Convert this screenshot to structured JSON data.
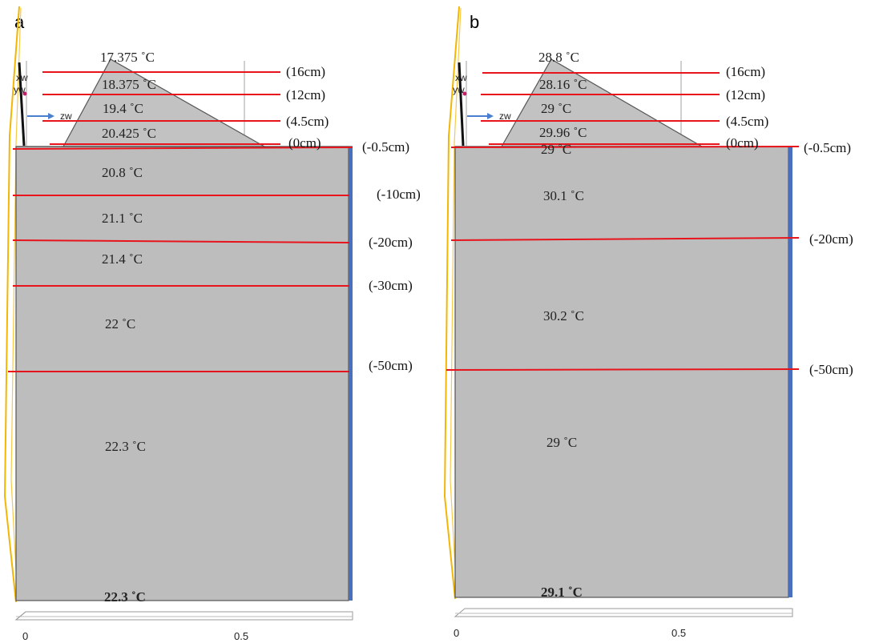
{
  "panels": [
    {
      "id": "a",
      "label": "a",
      "axis_bottom": {
        "ticks": [
          "0",
          "0.5"
        ]
      },
      "axis_triad": {
        "x": "xw",
        "y": "yw",
        "z": "zw"
      },
      "colors": {
        "domain": "#bdbdbd",
        "section_line": "#e8141c",
        "boundary": "#4a6fbd",
        "profile": "#f2b705"
      },
      "height_labels": [
        "(16cm)",
        "(12cm)",
        "(4.5cm)",
        "(0cm)",
        "(-0.5cm)",
        "(-10cm)",
        "(-20cm)",
        "(-30cm)",
        "(-50cm)"
      ],
      "temperatures": [
        "17.375 ˚C",
        "18.375 ˚C",
        "19.4 ˚C",
        "20.425 ˚C",
        "20.8 ˚C",
        "21.1 ˚C",
        "21.4 ˚C",
        "22 ˚C",
        "22.3 ˚C",
        "22.3 ˚C"
      ]
    },
    {
      "id": "b",
      "label": "b",
      "axis_bottom": {
        "ticks": [
          "0",
          "0.5"
        ]
      },
      "axis_triad": {
        "x": "xw",
        "y": "yw",
        "z": "zw"
      },
      "colors": {
        "domain": "#bdbdbd",
        "section_line": "#e8141c",
        "boundary": "#4a6fbd",
        "profile": "#f2b705"
      },
      "height_labels": [
        "(16cm)",
        "(12cm)",
        "(4.5cm)",
        "(0cm)",
        "(-0.5cm)",
        "(-20cm)",
        "(-50cm)"
      ],
      "temperatures": [
        "28.8 ˚C",
        "28.16 ˚C",
        "29 ˚C",
        "29.96 ˚C",
        "29 ˚C",
        "30.1 ˚C",
        "30.2 ˚C",
        "29 ˚C",
        "29.1 ˚C"
      ]
    }
  ]
}
